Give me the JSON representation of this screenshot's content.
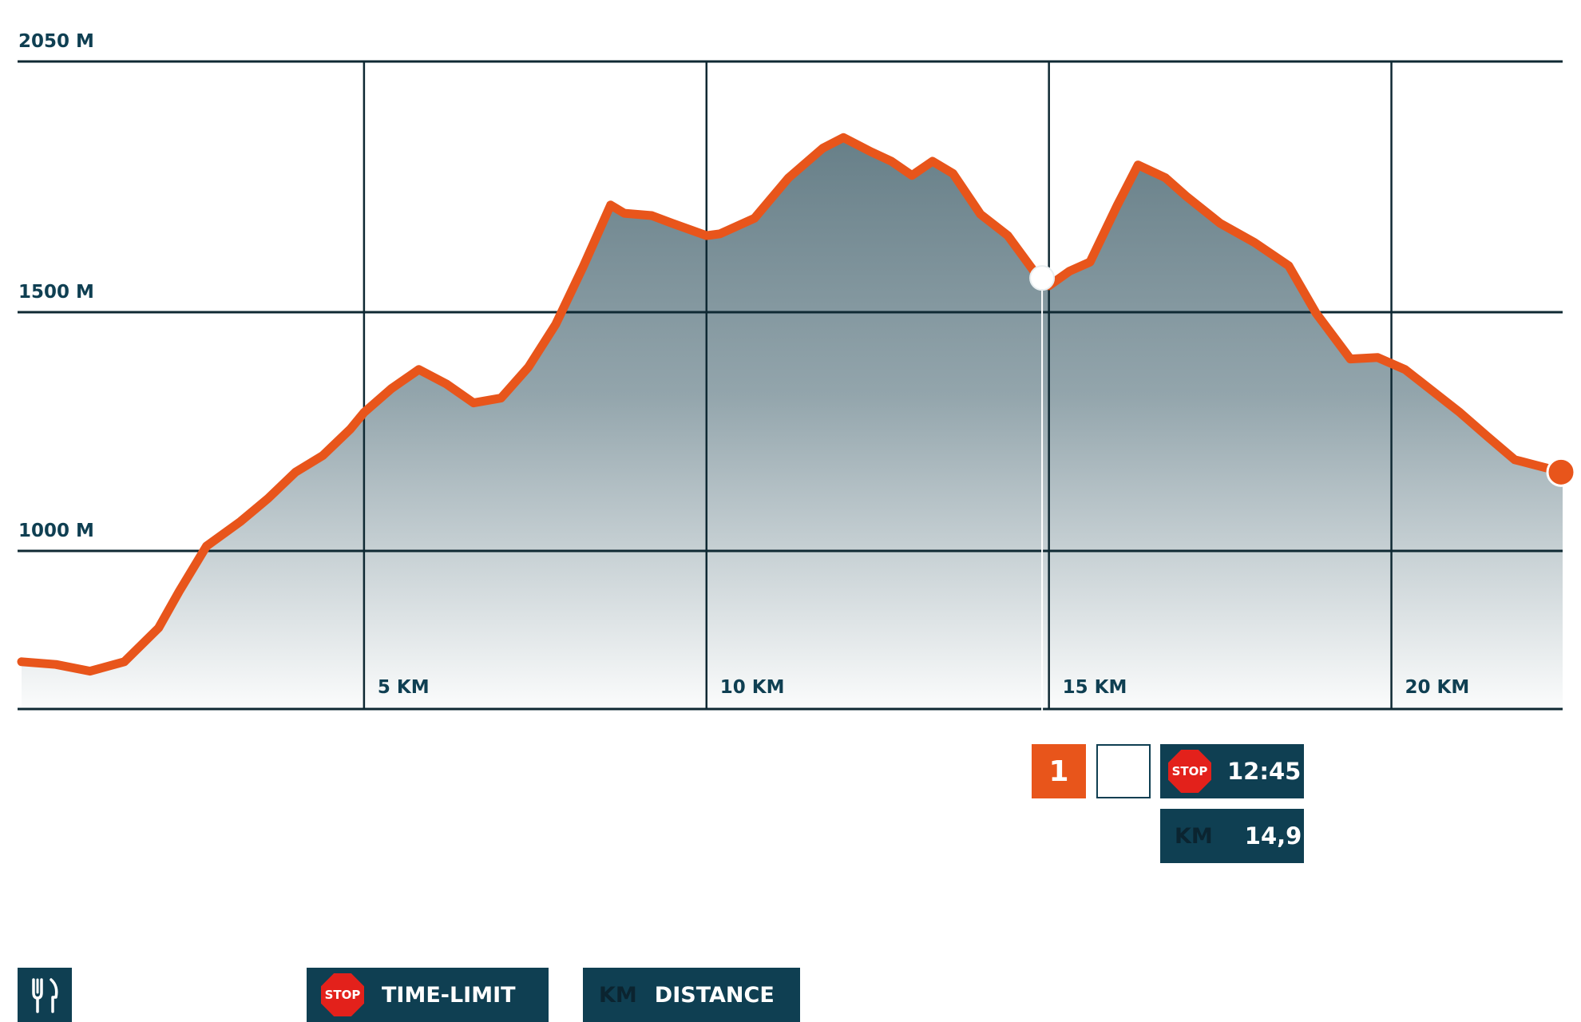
{
  "chart_data": {
    "type": "area",
    "title": "",
    "xlabel": "",
    "ylabel": "",
    "xlim": [
      0,
      22.5
    ],
    "ylim": [
      870,
      2050
    ],
    "y_ticks": [
      {
        "value": 2050,
        "label": "2050 M"
      },
      {
        "value": 1500,
        "label": "1500 M"
      },
      {
        "value": 1000,
        "label": "1000 M"
      }
    ],
    "x_ticks": [
      {
        "value": 5,
        "label": "5 KM"
      },
      {
        "value": 10,
        "label": "10 KM"
      },
      {
        "value": 15,
        "label": "15 KM"
      },
      {
        "value": 20,
        "label": "20 KM"
      }
    ],
    "grid": true,
    "series": [
      {
        "x": [
          0,
          0.5,
          1.0,
          1.5,
          2.0,
          2.3,
          2.7,
          3.2,
          3.6,
          4.0,
          4.4,
          4.8,
          5.0,
          5.4,
          5.8,
          6.2,
          6.6,
          7.0,
          7.4,
          7.8,
          8.2,
          8.6,
          8.8,
          9.2,
          9.5,
          10.0,
          10.2,
          10.7,
          11.2,
          11.7,
          12.0,
          12.4,
          12.7,
          13.0,
          13.3,
          13.6,
          14.0,
          14.4,
          14.8,
          15.0,
          15.3,
          15.6,
          16.0,
          16.3,
          16.7,
          17.0,
          17.5,
          18.0,
          18.5,
          18.9,
          19.4,
          19.8,
          20.2,
          20.6,
          21.0,
          21.4,
          21.8,
          22.1,
          22.5
        ],
        "y": [
          918,
          916,
          911,
          918,
          943,
          970,
          1010,
          1062,
          1110,
          1165,
          1200,
          1255,
          1290,
          1340,
          1380,
          1350,
          1310,
          1320,
          1385,
          1475,
          1600,
          1735,
          1717,
          1712,
          1695,
          1668,
          1672,
          1706,
          1795,
          1860,
          1883,
          1852,
          1831,
          1800,
          1831,
          1804,
          1715,
          1668,
          1586,
          1558,
          1590,
          1610,
          1735,
          1823,
          1795,
          1755,
          1695,
          1653,
          1602,
          1498,
          1402,
          1405,
          1380,
          1335,
          1290,
          1240,
          1191,
          1180,
          1165
        ]
      }
    ],
    "markers": [
      {
        "x": 0,
        "y": 888,
        "kind": "start"
      },
      {
        "x": 14.9,
        "y": 1575,
        "kind": "checkpoint"
      },
      {
        "x": 22.5,
        "y": 1165,
        "kind": "finish"
      }
    ],
    "colors": {
      "line": "#e8551b",
      "area_top": "#677f88",
      "area_bottom": "#ffffff",
      "dark": "#0f3f52",
      "stop": "#e3211b",
      "grid": "#0f2933"
    }
  },
  "checkpoint": {
    "number": "1",
    "stop_label": "STOP",
    "time": "12:45",
    "km_label": "KM",
    "km_value": "14,9"
  },
  "legend": {
    "food_icon": "fork-knife-icon",
    "stop_label": "STOP",
    "time_limit_label": "TIME-LIMIT",
    "km_label": "KM",
    "distance_label": "DISTANCE"
  }
}
